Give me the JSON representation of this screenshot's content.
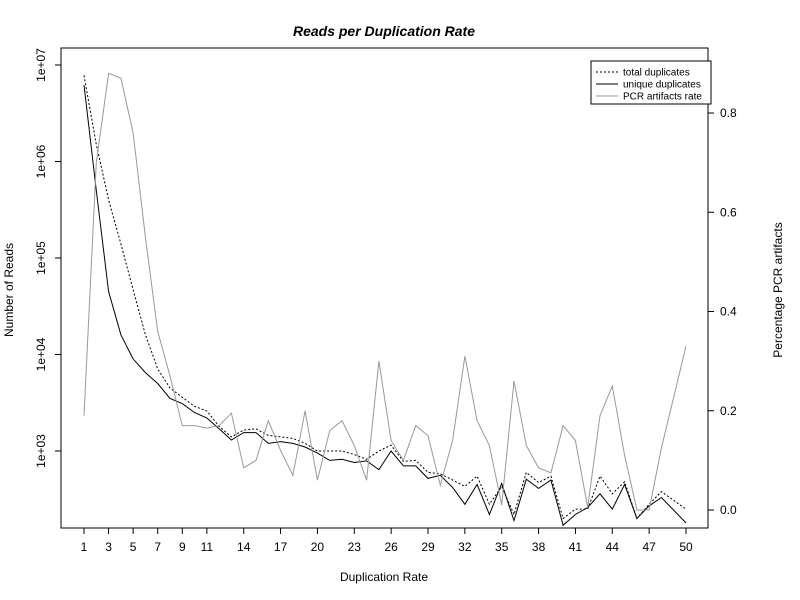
{
  "chart_data": {
    "type": "line",
    "title": "Reads per Duplication Rate",
    "xlabel": "Duplication Rate",
    "ylabel": "Number of Reads",
    "y2label": "Percentage PCR artifacts",
    "xlim": [
      1,
      50
    ],
    "ylim": [
      100,
      10000000
    ],
    "y_scale": "log",
    "y2lim": [
      0,
      0.9
    ],
    "x_ticks": [
      1,
      3,
      5,
      7,
      9,
      11,
      14,
      17,
      20,
      23,
      26,
      29,
      32,
      35,
      38,
      41,
      44,
      47,
      50
    ],
    "y_ticks": [
      {
        "value": 1000,
        "label": "1e+03"
      },
      {
        "value": 10000,
        "label": "1e+04"
      },
      {
        "value": 100000,
        "label": "1e+05"
      },
      {
        "value": 1000000,
        "label": "1e+06"
      },
      {
        "value": 10000000,
        "label": "1e+07"
      }
    ],
    "y2_ticks": [
      {
        "value": 0.0,
        "label": "0.0"
      },
      {
        "value": 0.2,
        "label": "0.2"
      },
      {
        "value": 0.4,
        "label": "0.4"
      },
      {
        "value": 0.6,
        "label": "0.6"
      },
      {
        "value": 0.8,
        "label": "0.8"
      }
    ],
    "legend": "top-right",
    "grid": false,
    "x": [
      1,
      2,
      3,
      4,
      5,
      6,
      7,
      8,
      9,
      10,
      11,
      12,
      13,
      14,
      15,
      16,
      17,
      18,
      19,
      20,
      21,
      22,
      23,
      24,
      25,
      26,
      27,
      28,
      29,
      30,
      31,
      32,
      33,
      34,
      35,
      36,
      37,
      38,
      39,
      40,
      41,
      42,
      43,
      44,
      45,
      46,
      47,
      48,
      50
    ],
    "series": [
      {
        "name": "total duplicates",
        "axis": "left",
        "color": "#000000",
        "style": "dotted",
        "values": [
          7800000,
          1500000,
          400000,
          140000,
          47000,
          16000,
          7100,
          4500,
          3600,
          2900,
          2600,
          1800,
          1400,
          1650,
          1700,
          1450,
          1400,
          1350,
          1200,
          1000,
          1000,
          1000,
          920,
          820,
          1000,
          1150,
          780,
          800,
          600,
          580,
          500,
          430,
          550,
          280,
          430,
          220,
          600,
          470,
          550,
          200,
          250,
          250,
          550,
          360,
          480,
          200,
          280,
          380,
          250
        ]
      },
      {
        "name": "unique duplicates",
        "axis": "left",
        "color": "#000000",
        "style": "solid",
        "values": [
          6200000,
          500000,
          45000,
          16000,
          9000,
          6500,
          5000,
          3500,
          3100,
          2500,
          2200,
          1700,
          1300,
          1550,
          1550,
          1200,
          1250,
          1200,
          1100,
          950,
          800,
          820,
          760,
          790,
          640,
          1000,
          700,
          700,
          520,
          560,
          420,
          280,
          450,
          220,
          460,
          190,
          510,
          410,
          500,
          170,
          220,
          260,
          360,
          250,
          450,
          200,
          270,
          330,
          180
        ]
      },
      {
        "name": "PCR artifacts rate",
        "axis": "right",
        "color": "#999999",
        "style": "solid",
        "values": [
          0.19,
          0.7,
          0.88,
          0.87,
          0.76,
          0.55,
          0.36,
          0.27,
          0.17,
          0.17,
          0.165,
          0.17,
          0.195,
          0.085,
          0.1,
          0.18,
          0.12,
          0.07,
          0.2,
          0.06,
          0.16,
          0.18,
          0.13,
          0.06,
          0.3,
          0.14,
          0.1,
          0.17,
          0.15,
          0.05,
          0.14,
          0.31,
          0.18,
          0.13,
          0.01,
          0.26,
          0.13,
          0.085,
          0.075,
          0.17,
          0.14,
          0.005,
          0.19,
          0.25,
          0.11,
          0.0,
          0.0,
          0.125,
          0.33
        ]
      }
    ]
  }
}
